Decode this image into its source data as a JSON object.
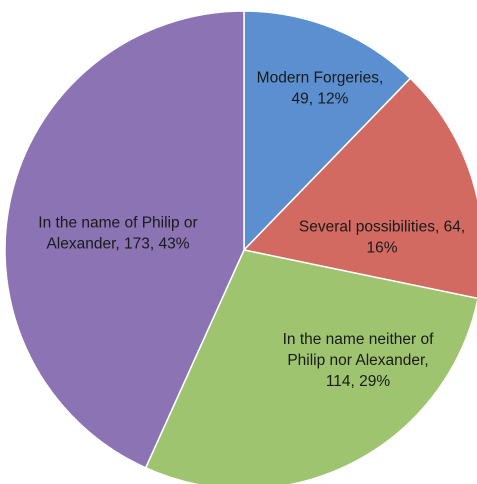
{
  "chart_data": {
    "type": "pie",
    "title": "",
    "start_angle_deg": 0,
    "direction": "clockwise",
    "slices": [
      {
        "category": "Modern Forgeries",
        "value": 49,
        "percent": "12%",
        "color": "#5b8fd0",
        "label_lines": [
          "Modern Forgeries,",
          "49, 12%"
        ]
      },
      {
        "category": "Several possibilities",
        "value": 64,
        "percent": "16%",
        "color": "#d36a62",
        "label_lines": [
          "Several possibilities, 64,",
          "16%"
        ]
      },
      {
        "category": "In the name neither of Philip nor Alexander",
        "value": 114,
        "percent": "29%",
        "color": "#9fc46f",
        "label_lines": [
          "In the name neither of",
          "Philip nor Alexander,",
          "114, 29%"
        ]
      },
      {
        "category": "In the name of Philip or Alexander",
        "value": 173,
        "percent": "43%",
        "color": "#8b73b4",
        "label_lines": [
          "In the name of Philip or",
          "Alexander, 173, 43%"
        ]
      }
    ]
  }
}
